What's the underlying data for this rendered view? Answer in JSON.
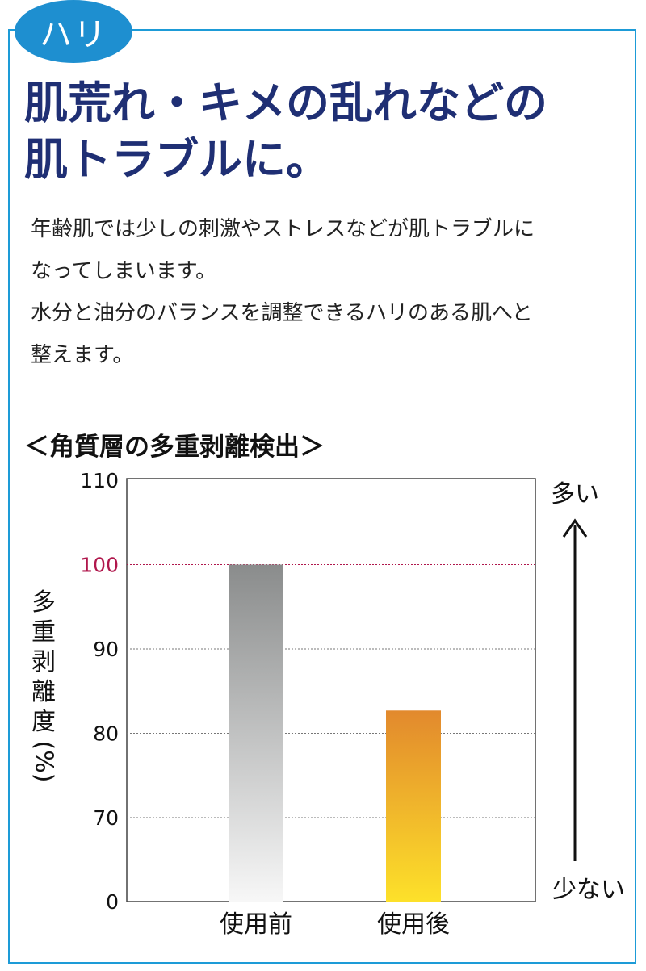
{
  "badge": "ハリ",
  "headline": [
    "肌荒れ・キメの乱れなどの",
    "肌トラブルに。"
  ],
  "body": [
    "年齢肌では少しの刺激やストレスなどが肌トラブルに",
    "なってしまいます。",
    "水分と油分のバランスを調整できるハリのある肌へと",
    "整えます。"
  ],
  "colors": {
    "frame": "#1d9bd7",
    "badge": "#1e8fd0",
    "headline": "#1f2f74",
    "ref_line": "#b0174c"
  },
  "chart_data": {
    "type": "bar",
    "title": "＜角質層の多重剥離検出＞",
    "ylabel_chars": [
      "多",
      "重",
      "剥",
      "離",
      "度"
    ],
    "ylabel_unit": "(%)",
    "categories": [
      "使用前",
      "使用後"
    ],
    "values": [
      100,
      82.7
    ],
    "yticks": [
      "110",
      "100",
      "90",
      "80",
      "70",
      "0"
    ],
    "reference_line": 100,
    "axis_break": "0–60 omitted",
    "grid": true,
    "arrow_top_label": "多い",
    "arrow_bottom_label": "少ない"
  }
}
